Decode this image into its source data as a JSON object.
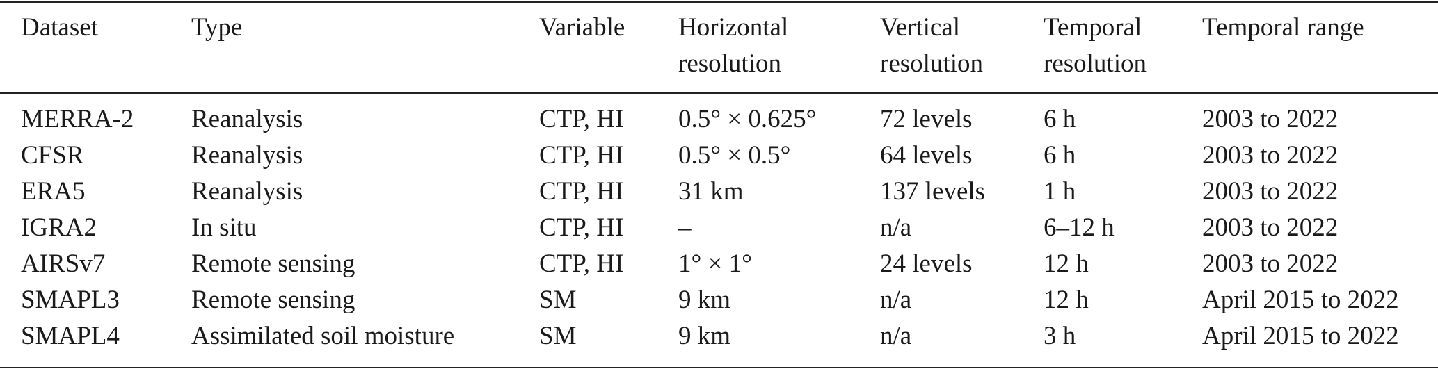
{
  "table": {
    "headers": [
      "Dataset",
      "Type",
      "Variable",
      "Horizontal resolution",
      "Vertical resolution",
      "Temporal resolution",
      "Temporal range"
    ],
    "rows": [
      [
        "MERRA-2",
        "Reanalysis",
        "CTP, HI",
        "0.5° × 0.625°",
        "72 levels",
        "6 h",
        "2003 to 2022"
      ],
      [
        "CFSR",
        "Reanalysis",
        "CTP, HI",
        "0.5° × 0.5°",
        "64 levels",
        "6 h",
        "2003 to 2022"
      ],
      [
        "ERA5",
        "Reanalysis",
        "CTP, HI",
        "31 km",
        "137 levels",
        "1 h",
        "2003 to 2022"
      ],
      [
        "IGRA2",
        "In situ",
        "CTP, HI",
        "–",
        "n/a",
        "6–12 h",
        "2003 to 2022"
      ],
      [
        "AIRSv7",
        "Remote sensing",
        "CTP, HI",
        "1° × 1°",
        "24 levels",
        "12 h",
        "2003 to 2022"
      ],
      [
        "SMAPL3",
        "Remote sensing",
        "SM",
        "9 km",
        "n/a",
        "12 h",
        "April 2015 to 2022"
      ],
      [
        "SMAPL4",
        "Assimilated soil moisture",
        "SM",
        "9 km",
        "n/a",
        "3 h",
        "April 2015 to 2022"
      ]
    ]
  }
}
